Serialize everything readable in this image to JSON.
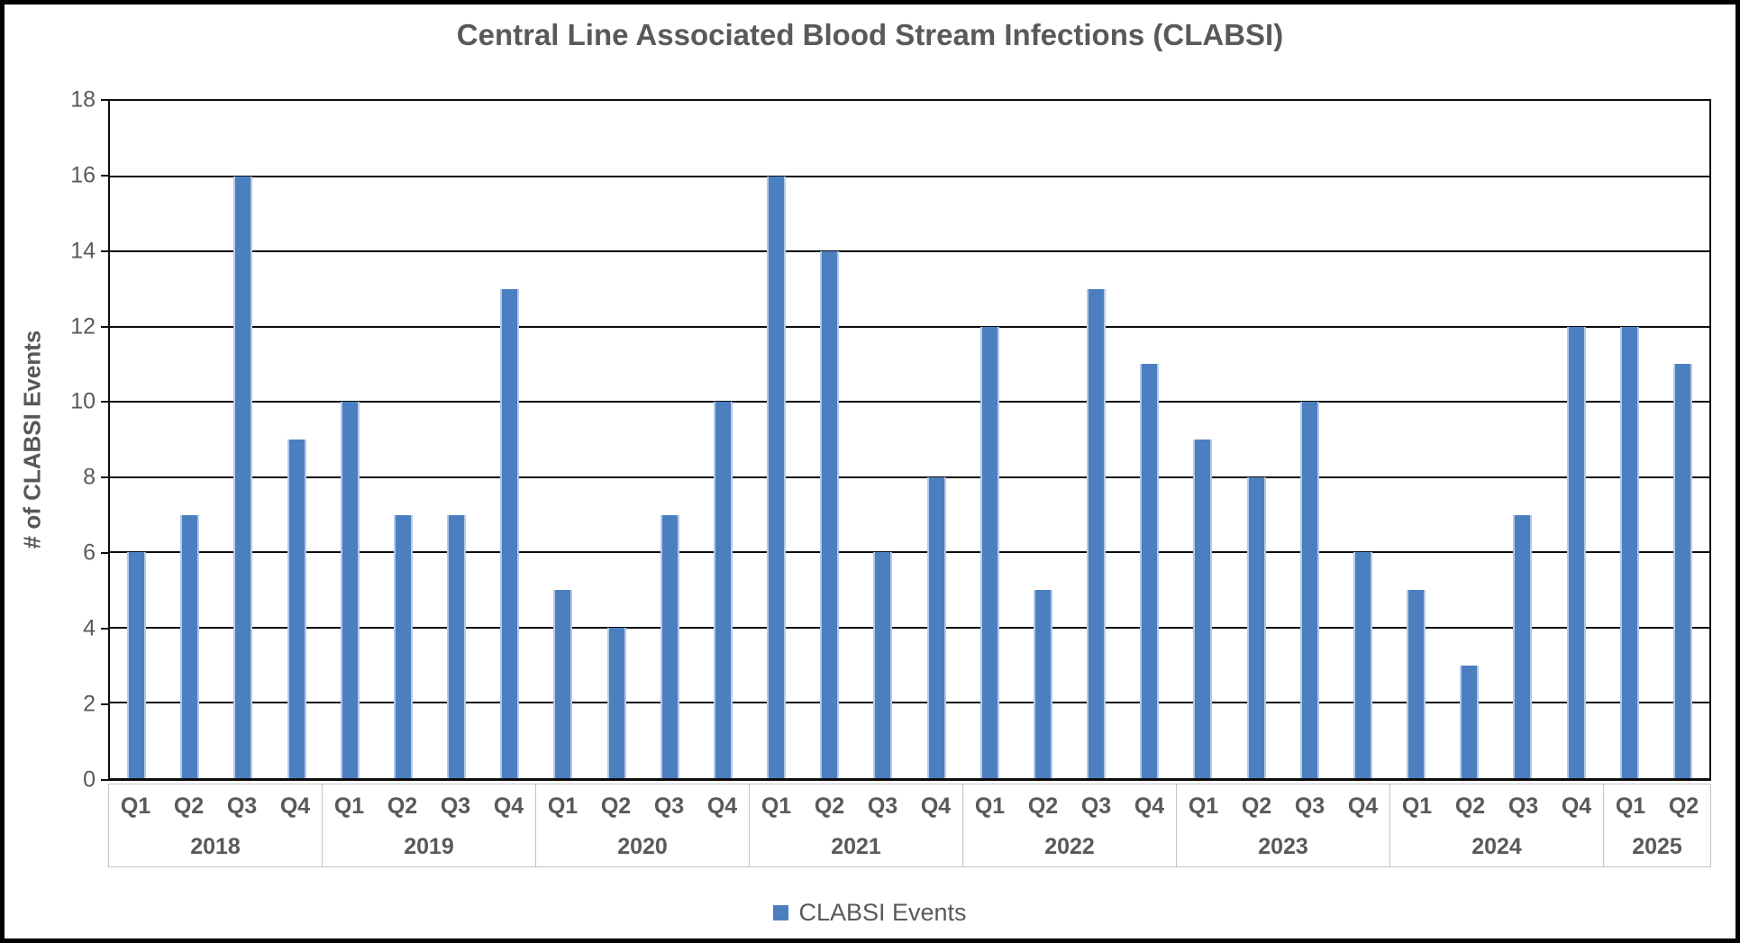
{
  "title": "Central Line Associated Blood Stream Infections (CLABSI)",
  "y_axis": {
    "title": "# of CLABSI Events"
  },
  "legend": {
    "label": "CLABSI Events"
  },
  "colors": {
    "bar": "#4c7fc0",
    "bar_edge": "#b5c9e7",
    "gridline": "#0d0d0d",
    "text": "#595959",
    "band_border": "#c3c3c3"
  },
  "chart_data": {
    "type": "bar",
    "title": "Central Line Associated Blood Stream Infections (CLABSI)",
    "xlabel": "",
    "ylabel": "# of CLABSI Events",
    "ylim": [
      0,
      18
    ],
    "ytick_step": 2,
    "grid": "horizontal-black",
    "legend_position": "bottom-center",
    "legend_entries": [
      "CLABSI Events"
    ],
    "groups": [
      {
        "year": "2018",
        "quarters": [
          "Q1",
          "Q2",
          "Q3",
          "Q4"
        ],
        "values": [
          6,
          7,
          16,
          9
        ]
      },
      {
        "year": "2019",
        "quarters": [
          "Q1",
          "Q2",
          "Q3",
          "Q4"
        ],
        "values": [
          10,
          7,
          7,
          13
        ]
      },
      {
        "year": "2020",
        "quarters": [
          "Q1",
          "Q2",
          "Q3",
          "Q4"
        ],
        "values": [
          5,
          4,
          7,
          10
        ]
      },
      {
        "year": "2021",
        "quarters": [
          "Q1",
          "Q2",
          "Q3",
          "Q4"
        ],
        "values": [
          16,
          14,
          6,
          8
        ]
      },
      {
        "year": "2022",
        "quarters": [
          "Q1",
          "Q2",
          "Q3",
          "Q4"
        ],
        "values": [
          12,
          5,
          13,
          11
        ]
      },
      {
        "year": "2023",
        "quarters": [
          "Q1",
          "Q2",
          "Q3",
          "Q4"
        ],
        "values": [
          9,
          8,
          10,
          6
        ]
      },
      {
        "year": "2024",
        "quarters": [
          "Q1",
          "Q2",
          "Q3",
          "Q4"
        ],
        "values": [
          5,
          3,
          7,
          12
        ]
      },
      {
        "year": "2025",
        "quarters": [
          "Q1",
          "Q2"
        ],
        "values": [
          12,
          11
        ]
      }
    ],
    "series": [
      {
        "name": "CLABSI Events",
        "values": [
          6,
          7,
          16,
          9,
          10,
          7,
          7,
          13,
          5,
          4,
          7,
          10,
          16,
          14,
          6,
          8,
          12,
          5,
          13,
          11,
          9,
          8,
          10,
          6,
          5,
          3,
          7,
          12,
          12,
          11
        ]
      }
    ]
  }
}
